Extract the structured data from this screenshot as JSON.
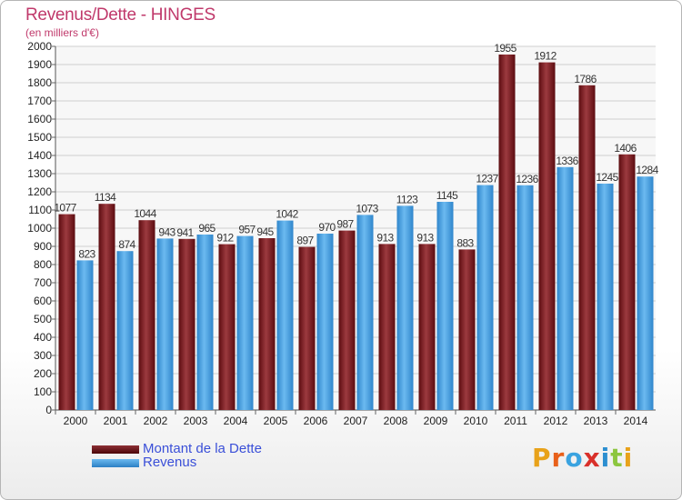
{
  "title": "Revenus/Dette - HINGES",
  "subtitle": "(en milliers d'€)",
  "legend": {
    "debt": "Montant de la Dette",
    "revenue": "Revenus"
  },
  "logo": {
    "text": "Proxiti",
    "letters": [
      "P",
      "r",
      "o",
      "x",
      "i",
      "t",
      "i"
    ],
    "colors": [
      "#e8a21a",
      "#e8601a",
      "#3aa3e0",
      "#d9302a",
      "#2c8fd0",
      "#8cc63f",
      "#e8a21a"
    ]
  },
  "colors": {
    "debt": "#7a1a1f",
    "debt_light": "#a8454a",
    "revenue": "#4ea6e6",
    "revenue_light": "#8cc8f2",
    "grid": "#cfcfcf",
    "axis_text": "#222222",
    "value_text": "#333333"
  },
  "chart_data": {
    "type": "bar",
    "categories": [
      "2000",
      "2001",
      "2002",
      "2003",
      "2004",
      "2005",
      "2006",
      "2007",
      "2008",
      "2009",
      "2010",
      "2011",
      "2012",
      "2013",
      "2014"
    ],
    "series": [
      {
        "name": "Montant de la Dette",
        "values": [
          1077,
          1134,
          1044,
          941,
          912,
          945,
          897,
          987,
          913,
          913,
          883,
          1955,
          1912,
          1786,
          1406
        ]
      },
      {
        "name": "Revenus",
        "values": [
          823,
          874,
          943,
          965,
          957,
          1042,
          970,
          1073,
          1123,
          1145,
          1237,
          1236,
          1336,
          1245,
          1284
        ]
      }
    ],
    "value_labels": [
      [
        "1077",
        "1134",
        "1044",
        "941",
        "912",
        "945",
        "897",
        "987",
        "913",
        "913",
        "883",
        "1955",
        "1912",
        "1786",
        "1406"
      ],
      [
        "823",
        "874",
        "943",
        "965",
        "957",
        "1042",
        "970",
        "1073",
        "1123",
        "1145",
        "1237",
        "1236",
        "1336",
        "1245",
        "1284"
      ]
    ],
    "yticks": [
      "0",
      "100",
      "200",
      "300",
      "400",
      "500",
      "600",
      "700",
      "800",
      "900",
      "1000",
      "1100",
      "1200",
      "1300",
      "1400",
      "1500",
      "1600",
      "1700",
      "1800",
      "1900",
      "2000"
    ],
    "ylim": [
      0,
      2000
    ],
    "grid": true,
    "legend_position": "bottom-left"
  }
}
